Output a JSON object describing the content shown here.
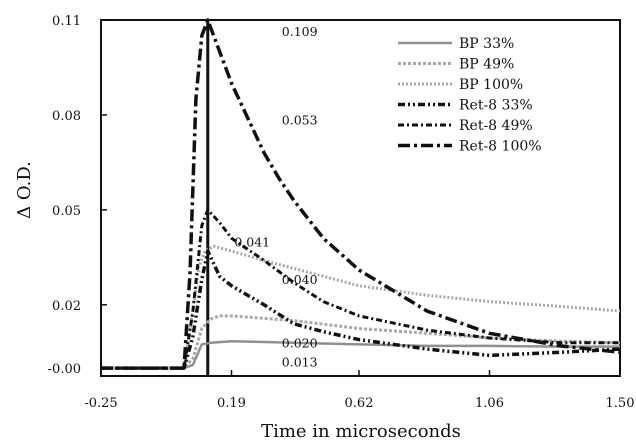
{
  "chart_data": {
    "type": "line",
    "title": "",
    "xlabel": "Time in microseconds",
    "ylabel": "Δ O.D.",
    "xlim": [
      -0.25,
      1.5
    ],
    "ylim": [
      -0.0025,
      0.11
    ],
    "x_ticks": [
      -0.25,
      0.19,
      0.62,
      1.06,
      1.5
    ],
    "x_tick_labels": [
      "-0.25",
      "0.19",
      "0.62",
      "1.06",
      "1.50"
    ],
    "y_ticks": [
      0.0,
      0.02,
      0.05,
      0.08,
      0.11
    ],
    "y_tick_labels": [
      "-0.00",
      "0.02",
      "0.05",
      "0.08",
      "0.11"
    ],
    "grid": false,
    "legend_position": "top-right",
    "vertical_marker_x": 0.11,
    "series": [
      {
        "name": "BP 33%",
        "color": "#909090",
        "dash": "solid",
        "width": 2.5,
        "points": [
          [
            -0.25,
            0.0
          ],
          [
            0.03,
            0.0
          ],
          [
            0.06,
            0.001
          ],
          [
            0.09,
            0.0075
          ],
          [
            0.12,
            0.008
          ],
          [
            0.19,
            0.0085
          ],
          [
            0.4,
            0.008
          ],
          [
            0.62,
            0.0075
          ],
          [
            0.85,
            0.007
          ],
          [
            1.06,
            0.007
          ],
          [
            1.3,
            0.0068
          ],
          [
            1.5,
            0.0068
          ]
        ]
      },
      {
        "name": "BP 49%",
        "color": "#a8a8a8",
        "dash": "3,2",
        "width": 3,
        "points": [
          [
            -0.25,
            0.0
          ],
          [
            0.03,
            0.0
          ],
          [
            0.06,
            0.003
          ],
          [
            0.09,
            0.0125
          ],
          [
            0.12,
            0.0155
          ],
          [
            0.15,
            0.0165
          ],
          [
            0.19,
            0.0165
          ],
          [
            0.4,
            0.015
          ],
          [
            0.62,
            0.0125
          ],
          [
            0.85,
            0.011
          ],
          [
            1.06,
            0.0095
          ],
          [
            1.3,
            0.0085
          ],
          [
            1.5,
            0.008
          ]
        ]
      },
      {
        "name": "BP 100%",
        "color": "#a8a8a8",
        "dash": "2,2",
        "width": 3,
        "points": [
          [
            -0.25,
            0.0
          ],
          [
            0.03,
            0.0
          ],
          [
            0.05,
            0.012
          ],
          [
            0.08,
            0.032
          ],
          [
            0.1,
            0.037
          ],
          [
            0.13,
            0.0385
          ],
          [
            0.19,
            0.037
          ],
          [
            0.3,
            0.034
          ],
          [
            0.4,
            0.0315
          ],
          [
            0.62,
            0.026
          ],
          [
            0.85,
            0.023
          ],
          [
            1.06,
            0.021
          ],
          [
            1.3,
            0.0195
          ],
          [
            1.5,
            0.018
          ]
        ]
      },
      {
        "name": "Ret-8 33%",
        "color": "#111111",
        "dash": "7,3,2,3,2,3",
        "width": 3.5,
        "points": [
          [
            -0.25,
            0.0
          ],
          [
            0.03,
            0.0
          ],
          [
            0.06,
            0.01
          ],
          [
            0.09,
            0.028
          ],
          [
            0.11,
            0.037
          ],
          [
            0.15,
            0.029
          ],
          [
            0.19,
            0.026
          ],
          [
            0.3,
            0.02
          ],
          [
            0.4,
            0.014
          ],
          [
            0.5,
            0.0115
          ],
          [
            0.62,
            0.009
          ],
          [
            0.85,
            0.006
          ],
          [
            1.06,
            0.004
          ],
          [
            1.3,
            0.005
          ],
          [
            1.5,
            0.006
          ]
        ]
      },
      {
        "name": "Ret-8 49%",
        "color": "#111111",
        "dash": "6,3,2,3",
        "width": 3,
        "points": [
          [
            -0.25,
            0.0
          ],
          [
            0.03,
            0.0
          ],
          [
            0.06,
            0.018
          ],
          [
            0.09,
            0.045
          ],
          [
            0.11,
            0.05
          ],
          [
            0.15,
            0.046
          ],
          [
            0.19,
            0.041
          ],
          [
            0.3,
            0.034
          ],
          [
            0.4,
            0.027
          ],
          [
            0.5,
            0.021
          ],
          [
            0.62,
            0.0165
          ],
          [
            0.85,
            0.012
          ],
          [
            1.06,
            0.0095
          ],
          [
            1.3,
            0.008
          ],
          [
            1.5,
            0.008
          ]
        ]
      },
      {
        "name": "Ret-8 100%",
        "color": "#111111",
        "dash": "12,4,3,4",
        "width": 3.5,
        "points": [
          [
            -0.25,
            0.0
          ],
          [
            0.03,
            0.0
          ],
          [
            0.05,
            0.03
          ],
          [
            0.07,
            0.085
          ],
          [
            0.09,
            0.105
          ],
          [
            0.11,
            0.11
          ],
          [
            0.13,
            0.105
          ],
          [
            0.19,
            0.09
          ],
          [
            0.25,
            0.078
          ],
          [
            0.3,
            0.068
          ],
          [
            0.35,
            0.06
          ],
          [
            0.4,
            0.053
          ],
          [
            0.5,
            0.041
          ],
          [
            0.62,
            0.031
          ],
          [
            0.85,
            0.018
          ],
          [
            1.06,
            0.011
          ],
          [
            1.3,
            0.007
          ],
          [
            1.5,
            0.005
          ]
        ]
      }
    ],
    "annotations": [
      {
        "text": "0.109",
        "x": 0.42,
        "y": 0.105
      },
      {
        "text": "0.053",
        "x": 0.42,
        "y": 0.077
      },
      {
        "text": "0.041",
        "x": 0.26,
        "y": 0.0385
      },
      {
        "text": "0.040",
        "x": 0.42,
        "y": 0.0265
      },
      {
        "text": "0.020",
        "x": 0.42,
        "y": 0.0065
      },
      {
        "text": "0.013",
        "x": 0.42,
        "y": 0.0005
      }
    ]
  }
}
